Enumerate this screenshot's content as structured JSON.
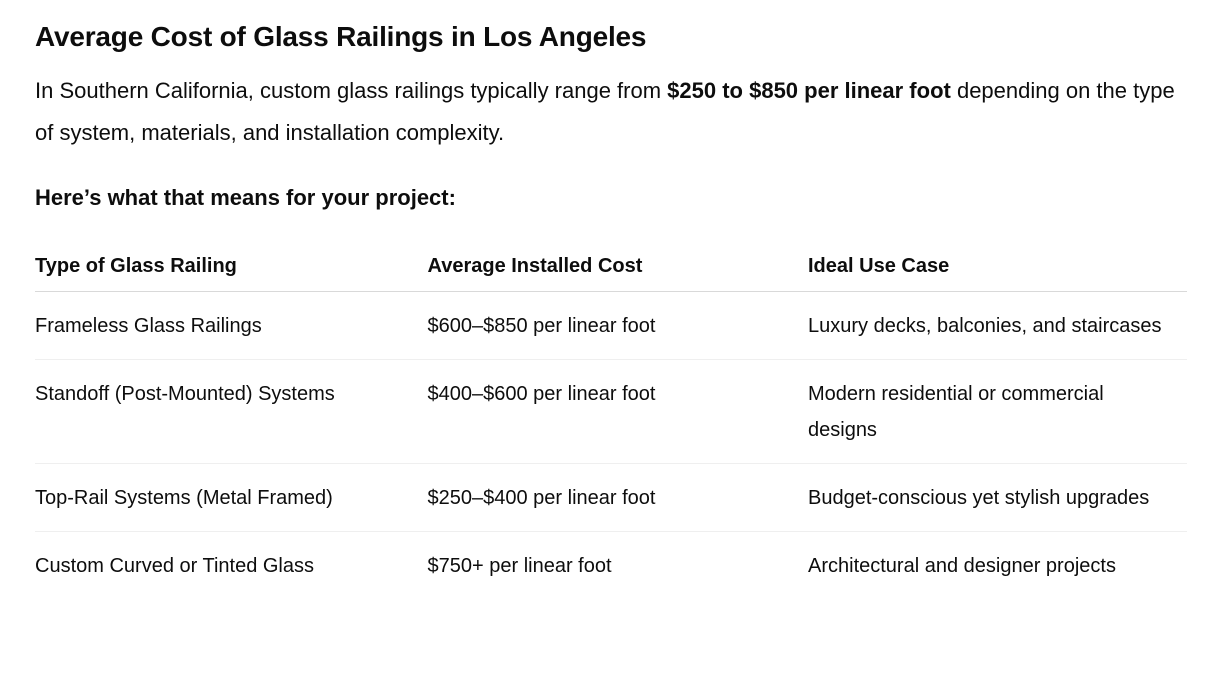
{
  "heading": "Average Cost of Glass Railings in Los Angeles",
  "intro": {
    "before": "In Southern California, custom glass railings typically range from ",
    "bold": "$250 to $850 per linear foot",
    "after": " depending on the type of system, materials, and installation complexity."
  },
  "subheading": "Here’s what that means for your project:",
  "table": {
    "headers": [
      "Type of Glass Railing",
      "Average Installed Cost",
      "Ideal Use Case"
    ],
    "rows": [
      [
        "Frameless Glass Railings",
        "$600–$850 per linear foot",
        "Luxury decks, balconies, and staircases"
      ],
      [
        "Standoff (Post-Mounted) Systems",
        "$400–$600 per linear foot",
        "Modern residential or commercial designs"
      ],
      [
        "Top-Rail Systems (Metal Framed)",
        "$250–$400 per linear foot",
        "Budget-conscious yet stylish upgrades"
      ],
      [
        "Custom Curved or Tinted Glass",
        "$750+ per linear foot",
        "Architectural and designer projects"
      ]
    ]
  }
}
